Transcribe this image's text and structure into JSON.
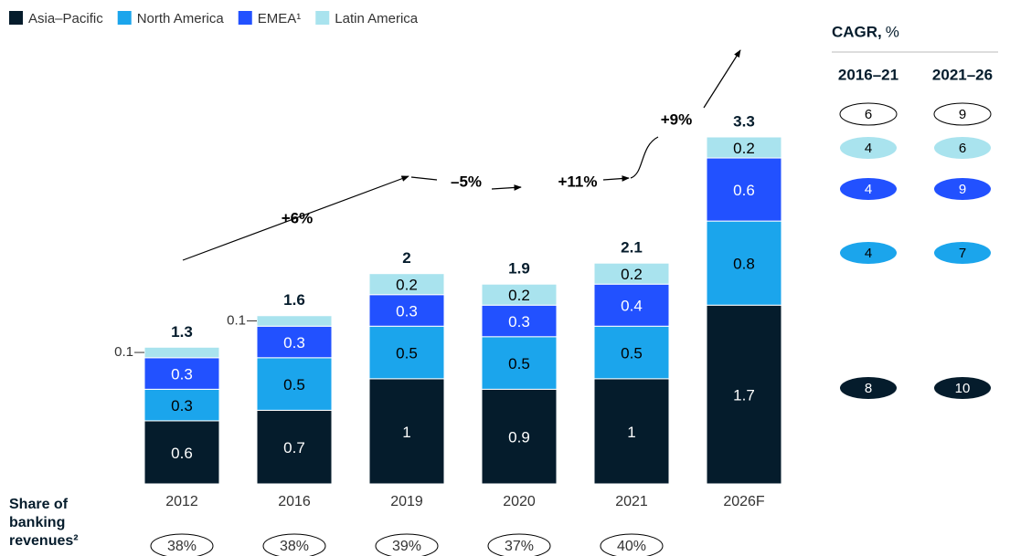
{
  "chart_data": {
    "type": "bar",
    "stacked": true,
    "categories": [
      "2012",
      "2016",
      "2019",
      "2020",
      "2021",
      "2026F"
    ],
    "series": [
      {
        "name": "Asia–Pacific",
        "color": "#051c2c",
        "values": [
          0.6,
          0.7,
          1.0,
          0.9,
          1.0,
          1.7
        ]
      },
      {
        "name": "North America",
        "color": "#1ba5ec",
        "values": [
          0.3,
          0.5,
          0.5,
          0.5,
          0.5,
          0.8
        ]
      },
      {
        "name": "EMEA¹",
        "color": "#2251ff",
        "values": [
          0.3,
          0.3,
          0.3,
          0.3,
          0.4,
          0.6
        ]
      },
      {
        "name": "Latin America",
        "color": "#a9e3ee",
        "values": [
          0.1,
          0.1,
          0.2,
          0.2,
          0.2,
          0.2
        ]
      }
    ],
    "totals": [
      1.3,
      1.6,
      2.0,
      1.9,
      2.1,
      3.3
    ],
    "annotations": [
      "+6%",
      "–5%",
      "+11%",
      "+9%"
    ],
    "share": {
      "label": "Share of banking revenues²",
      "values": [
        38,
        38,
        39,
        37,
        40,
        null
      ],
      "value_labels": [
        "38%",
        "38%",
        "39%",
        "37%",
        "40%",
        null
      ]
    },
    "cagr": {
      "title": "CAGR,",
      "unit": "%",
      "columns": [
        "2016–21",
        "2021–26"
      ],
      "total": [
        6,
        9
      ],
      "series": [
        [
          8,
          10
        ],
        [
          4,
          7
        ],
        [
          4,
          9
        ],
        [
          4,
          6
        ]
      ]
    }
  }
}
